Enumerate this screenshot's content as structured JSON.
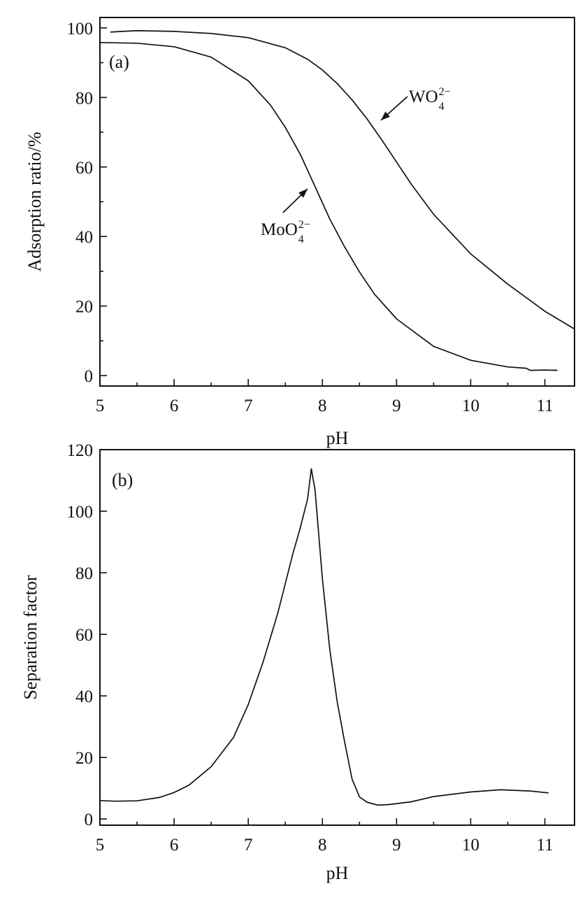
{
  "chart_data": [
    {
      "type": "line",
      "panel_label": "(a)",
      "xlabel": "pH",
      "ylabel": "Adsorption ratio/%",
      "xlim": [
        5,
        11.4
      ],
      "ylim": [
        -3,
        103
      ],
      "xticks": [
        "5",
        "6",
        "7",
        "8",
        "9",
        "10",
        "11"
      ],
      "yticks": [
        "0",
        "20",
        "40",
        "60",
        "80",
        "100"
      ],
      "xtick_values": [
        5,
        6,
        7,
        8,
        9,
        10,
        11
      ],
      "ytick_values": [
        0,
        20,
        40,
        60,
        80,
        100
      ],
      "series": [
        {
          "name": "WO42−",
          "label_base": "WO",
          "label_sub": "4",
          "label_sup": "2−",
          "x": [
            5.14,
            5.3,
            5.5,
            6.0,
            6.5,
            7.0,
            7.5,
            7.8,
            8.0,
            8.2,
            8.4,
            8.6,
            8.8,
            9.0,
            9.2,
            9.5,
            10.0,
            10.5,
            11.0,
            11.4
          ],
          "y": [
            98.8,
            99.0,
            99.2,
            99.0,
            98.4,
            97.2,
            94.3,
            91.0,
            87.9,
            84.0,
            79.3,
            73.9,
            67.8,
            61.4,
            55.0,
            46.4,
            35.0,
            26.3,
            18.5,
            13.4
          ]
        },
        {
          "name": "MoO42−",
          "label_base": "MoO",
          "label_sub": "4",
          "label_sup": "2−",
          "x": [
            5.0,
            5.5,
            6.0,
            6.5,
            7.0,
            7.3,
            7.5,
            7.7,
            7.9,
            8.1,
            8.3,
            8.5,
            8.7,
            9.0,
            9.5,
            10.0,
            10.5,
            10.75,
            10.8,
            11.0,
            11.17
          ],
          "y": [
            95.8,
            95.6,
            94.6,
            91.6,
            84.8,
            77.8,
            71.4,
            63.7,
            54.4,
            45.0,
            37.0,
            29.8,
            23.5,
            16.3,
            8.4,
            4.4,
            2.5,
            2.1,
            1.5,
            1.6,
            1.5
          ]
        }
      ]
    },
    {
      "type": "line",
      "panel_label": "(b)",
      "xlabel": "pH",
      "ylabel": "Separation factor",
      "xlim": [
        5,
        11.4
      ],
      "ylim": [
        -2,
        120
      ],
      "xticks": [
        "5",
        "6",
        "7",
        "8",
        "9",
        "10",
        "11"
      ],
      "yticks": [
        "0",
        "20",
        "40",
        "60",
        "80",
        "100",
        "120"
      ],
      "xtick_values": [
        5,
        6,
        7,
        8,
        9,
        10,
        11
      ],
      "ytick_values": [
        0,
        20,
        40,
        60,
        80,
        100,
        120
      ],
      "series": [
        {
          "x": [
            5.0,
            5.2,
            5.5,
            5.8,
            6.0,
            6.2,
            6.5,
            6.8,
            7.0,
            7.2,
            7.4,
            7.6,
            7.7,
            7.8,
            7.85,
            7.9,
            8.0,
            8.1,
            8.2,
            8.3,
            8.4,
            8.5,
            8.6,
            8.75,
            8.9,
            9.2,
            9.5,
            10.0,
            10.4,
            10.8,
            11.05
          ],
          "y": [
            6.0,
            5.8,
            5.9,
            7.0,
            8.6,
            11.0,
            17.0,
            26.5,
            37.2,
            51.0,
            67.0,
            86.0,
            94.5,
            104.0,
            113.8,
            107.0,
            78.0,
            55.0,
            38.0,
            25.0,
            13.0,
            7.2,
            5.5,
            4.5,
            4.7,
            5.6,
            7.3,
            8.8,
            9.5,
            9.1,
            8.5
          ]
        }
      ]
    }
  ]
}
